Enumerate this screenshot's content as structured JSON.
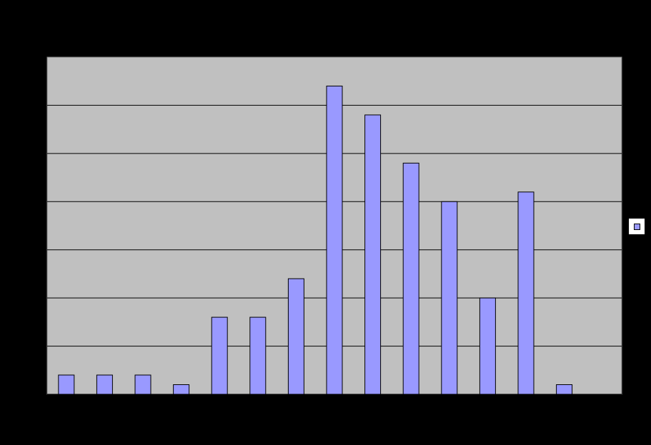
{
  "chart_data": {
    "type": "bar",
    "title": "",
    "xlabel": "",
    "ylabel": "",
    "categories": [
      "",
      "",
      "",
      "",
      "",
      "",
      "",
      "",
      "",
      "",
      "",
      "",
      "",
      "",
      ""
    ],
    "series": [
      {
        "values": [
          2,
          2,
          2,
          1,
          8,
          8,
          12,
          32,
          29,
          24,
          20,
          10,
          21,
          1,
          0
        ]
      }
    ],
    "ylim": [
      0,
      35
    ],
    "ytick_step": 5,
    "grid": true,
    "legend": "right",
    "colors": {
      "background": "#000000",
      "plot_area": "#c0c0c0",
      "bar_fill": "#9999ff",
      "bar_stroke": "#000000",
      "gridline": "#000000",
      "legend_box": "#ffffff"
    }
  }
}
